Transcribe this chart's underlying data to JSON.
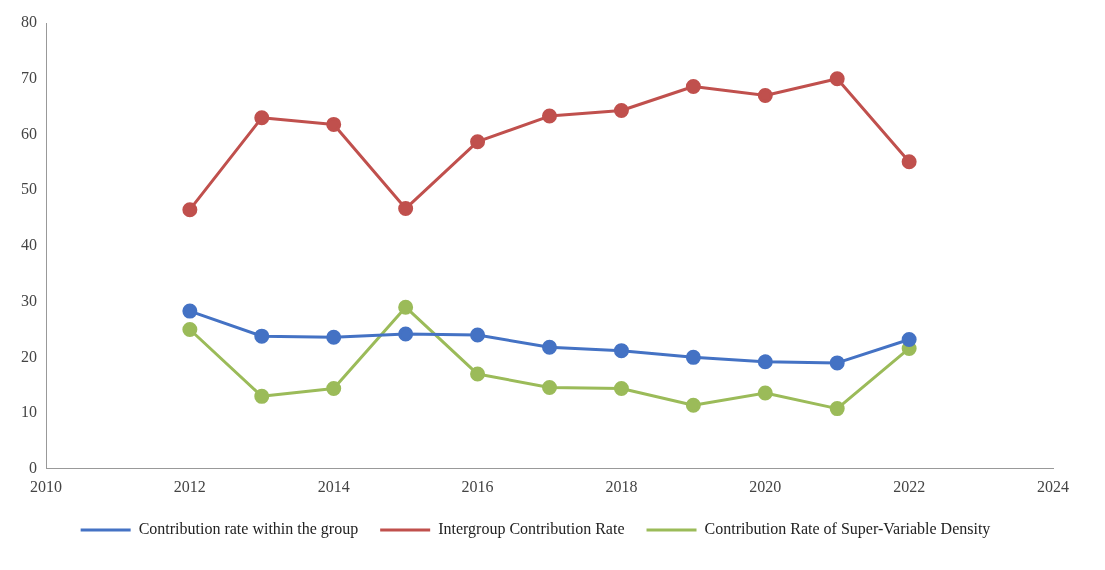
{
  "chart_data": {
    "type": "line",
    "x": [
      2012,
      2013,
      2014,
      2015,
      2016,
      2017,
      2018,
      2019,
      2020,
      2021,
      2022
    ],
    "series": [
      {
        "name": "Contribution rate within the group",
        "color": "#4472c4",
        "values": [
          28.3,
          23.8,
          23.6,
          24.2,
          24,
          21.8,
          21.2,
          20,
          19.2,
          19,
          23.2
        ]
      },
      {
        "name": "Intergroup Contribution Rate",
        "color": "#c0504d",
        "values": [
          46.5,
          63,
          61.8,
          46.7,
          58.7,
          63.3,
          64.3,
          68.6,
          67,
          70,
          55.1
        ]
      },
      {
        "name": "Contribution Rate of Super-Variable Density",
        "color": "#9bbb59",
        "values": [
          25,
          13,
          14.4,
          29,
          17,
          14.6,
          14.4,
          11.4,
          13.6,
          10.8,
          21.6
        ]
      }
    ],
    "xlim": [
      2010,
      2024
    ],
    "xticks": [
      2010,
      2012,
      2014,
      2016,
      2018,
      2020,
      2022,
      2024
    ],
    "ylim": [
      0,
      80
    ],
    "yticks": [
      0,
      10,
      20,
      30,
      40,
      50,
      60,
      70,
      80
    ],
    "grid": false,
    "legend": "bottom",
    "marker": "circle",
    "line_style": "solid"
  }
}
